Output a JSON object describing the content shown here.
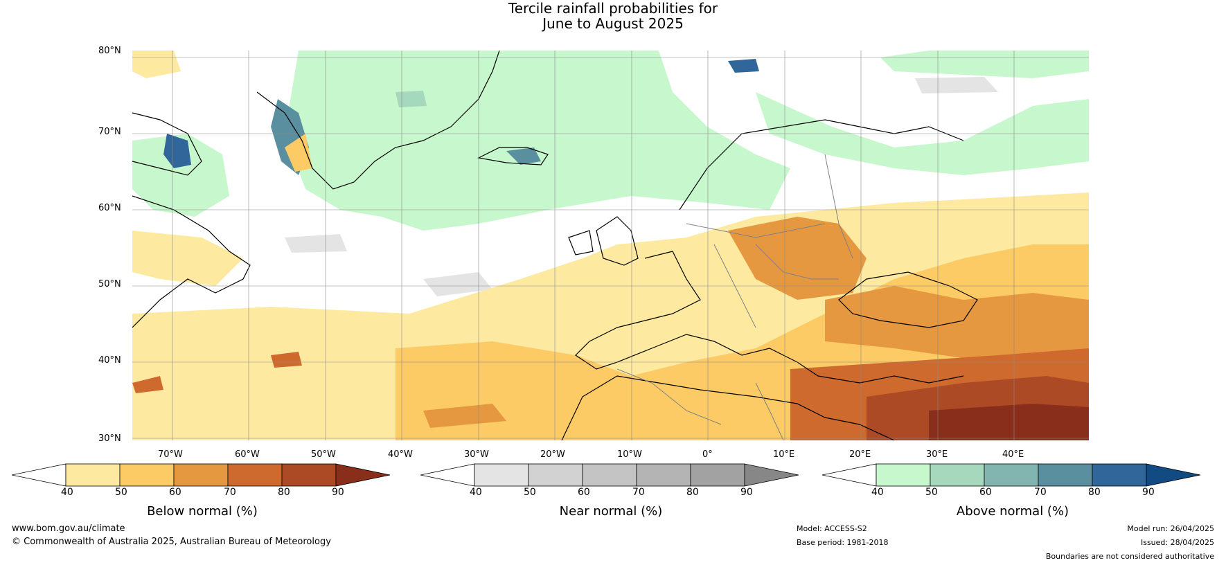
{
  "title": {
    "line1": "Tercile rainfall probabilities for",
    "line2": "June to August 2025"
  },
  "map": {
    "lat_labels": [
      "80°N",
      "70°N",
      "60°N",
      "50°N",
      "40°N",
      "30°N"
    ],
    "lon_labels": [
      "70°W",
      "60°W",
      "50°W",
      "40°W",
      "30°W",
      "20°W",
      "10°W",
      "0°",
      "10°E",
      "20°E",
      "30°E",
      "40°E"
    ]
  },
  "colorbars": [
    {
      "label": "Below normal (%)",
      "ticks": [
        "40",
        "50",
        "60",
        "70",
        "80",
        "90"
      ],
      "colors": [
        "#ffffff",
        "#fdeaa0",
        "#fccb66",
        "#e5983f",
        "#cf6a2f",
        "#ac4a26",
        "#8a2e1c"
      ]
    },
    {
      "label": "Near normal (%)",
      "ticks": [
        "40",
        "50",
        "60",
        "70",
        "80",
        "90"
      ],
      "colors": [
        "#ffffff",
        "#e4e4e4",
        "#d2d2d2",
        "#c4c4c4",
        "#b4b4b4",
        "#a2a2a2",
        "#878787"
      ]
    },
    {
      "label": "Above normal (%)",
      "ticks": [
        "40",
        "50",
        "60",
        "70",
        "80",
        "90"
      ],
      "colors": [
        "#ffffff",
        "#c7f7cc",
        "#a5d8bc",
        "#82b5b0",
        "#5a8fa0",
        "#30669a",
        "#124a82"
      ]
    }
  ],
  "footer": {
    "website": "www.bom.gov.au/climate",
    "copyright": "© Commonwealth of Australia 2025, Australian Bureau of Meteorology",
    "model": "Model: ACCESS-S2",
    "base_period": "Base period: 1981-2018",
    "model_run": "Model run: 26/04/2025",
    "issued": "Issued: 28/04/2025",
    "disclaimer": "Boundaries are not considered authoritative"
  }
}
